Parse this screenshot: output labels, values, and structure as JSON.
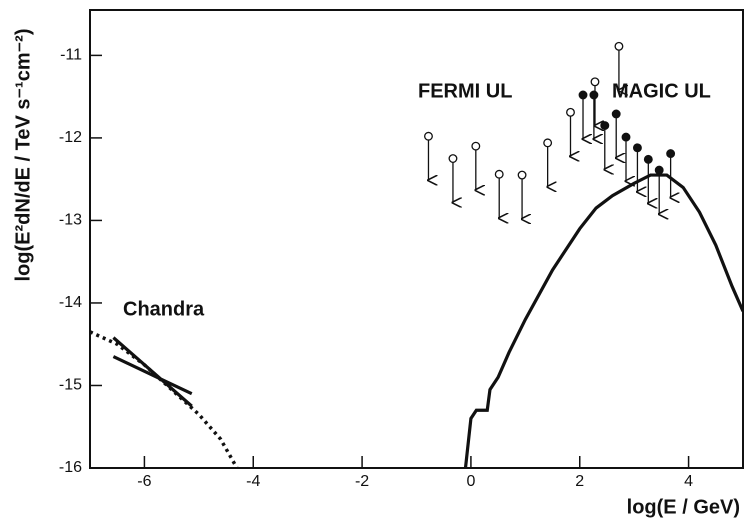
{
  "chart_data": {
    "type": "line",
    "xlabel": "log(E / GeV)",
    "ylabel": "log(E²dN/dE / TeV s⁻¹cm⁻²)",
    "xlim": [
      -7,
      5
    ],
    "ylim": [
      -16,
      -10.45
    ],
    "xticks": [
      -6,
      -4,
      -2,
      0,
      2,
      4
    ],
    "yticks": [
      -16,
      -15,
      -14,
      -13,
      -12,
      -11
    ],
    "series": [
      {
        "color": "#111111",
        "style": "solid",
        "marker": "none",
        "x": [
          -0.1,
          0,
          0.1,
          0.3,
          0.35,
          0.5,
          0.7,
          1.0,
          1.5,
          2.0,
          2.3,
          2.6,
          3.0,
          3.3,
          3.6,
          3.9,
          4.2,
          4.5,
          4.8,
          5.0
        ],
        "values": [
          -16,
          -15.4,
          -15.3,
          -15.3,
          -15.05,
          -14.9,
          -14.6,
          -14.2,
          -13.6,
          -13.1,
          -12.85,
          -12.7,
          -12.55,
          -12.45,
          -12.45,
          -12.6,
          -12.9,
          -13.3,
          -13.8,
          -14.1
        ]
      },
      {
        "color": "#111111",
        "style": "dotted",
        "marker": "none",
        "x": [
          -7,
          -6.5,
          -6,
          -5.5,
          -5,
          -4.6,
          -4.3
        ],
        "values": [
          -14.35,
          -14.5,
          -14.75,
          -15.05,
          -15.35,
          -15.65,
          -16
        ]
      },
      {
        "name": "Chandra",
        "color": "#111111",
        "style": "solid",
        "marker": "none",
        "x": [
          -6.57,
          -5.13,
          null,
          -6.57,
          -5.13
        ],
        "values": [
          -14.42,
          -15.25,
          null,
          -14.65,
          -15.1
        ]
      },
      {
        "name": "FERMI UL",
        "color": "#111111",
        "style": "none",
        "marker": "open",
        "x": [
          -0.78,
          -0.33,
          0.09,
          0.52,
          0.94,
          1.41,
          1.83,
          2.28,
          2.72
        ],
        "values": [
          -11.98,
          -12.25,
          -12.1,
          -12.44,
          -12.45,
          -12.06,
          -11.69,
          -11.32,
          -10.89
        ]
      },
      {
        "name": "MAGIC UL",
        "color": "#111111",
        "style": "none",
        "marker": "filled",
        "x": [
          2.06,
          2.26,
          2.46,
          2.67,
          2.85,
          3.06,
          3.26,
          3.46,
          3.67
        ],
        "values": [
          -11.48,
          -11.48,
          -11.85,
          -11.71,
          -11.99,
          -12.12,
          -12.26,
          -12.39,
          -12.19
        ]
      }
    ]
  }
}
